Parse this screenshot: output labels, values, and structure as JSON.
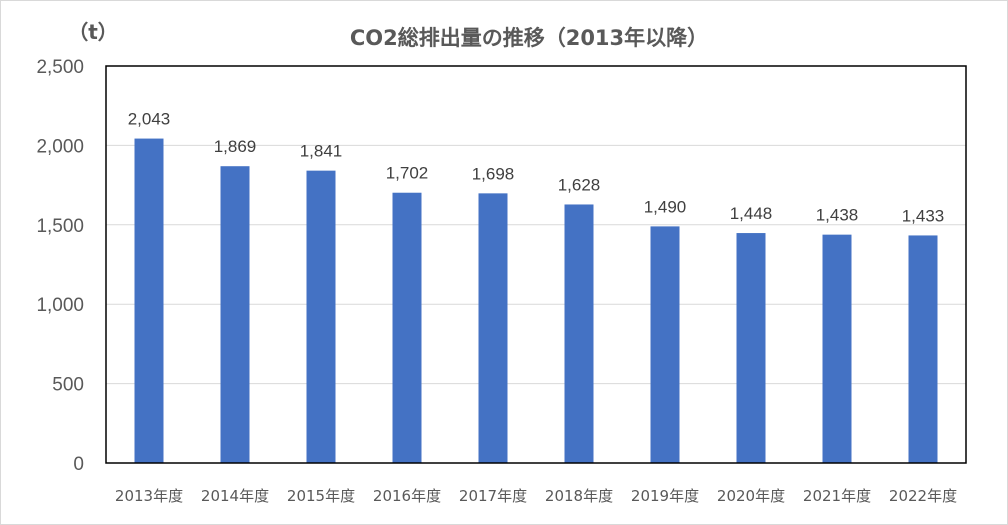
{
  "chart_data": {
    "type": "bar",
    "title": "CO2総排出量の推移（2013年以降）",
    "unit_label": "（t）",
    "categories": [
      "2013年度",
      "2014年度",
      "2015年度",
      "2016年度",
      "2017年度",
      "2018年度",
      "2019年度",
      "2020年度",
      "2021年度",
      "2022年度"
    ],
    "values": [
      2043,
      1869,
      1841,
      1702,
      1698,
      1628,
      1490,
      1448,
      1438,
      1433
    ],
    "data_labels": [
      "2,043",
      "1,869",
      "1,841",
      "1,702",
      "1,698",
      "1,628",
      "1,490",
      "1,448",
      "1,438",
      "1,433"
    ],
    "yticks": [
      0,
      500,
      1000,
      1500,
      2000,
      2500
    ],
    "ytick_labels": [
      "0",
      "500",
      "1,000",
      "1,500",
      "2,000",
      "2,500"
    ],
    "ylim": [
      0,
      2500
    ],
    "grid": true,
    "legend": "none",
    "bar_color": "#4472c4"
  }
}
